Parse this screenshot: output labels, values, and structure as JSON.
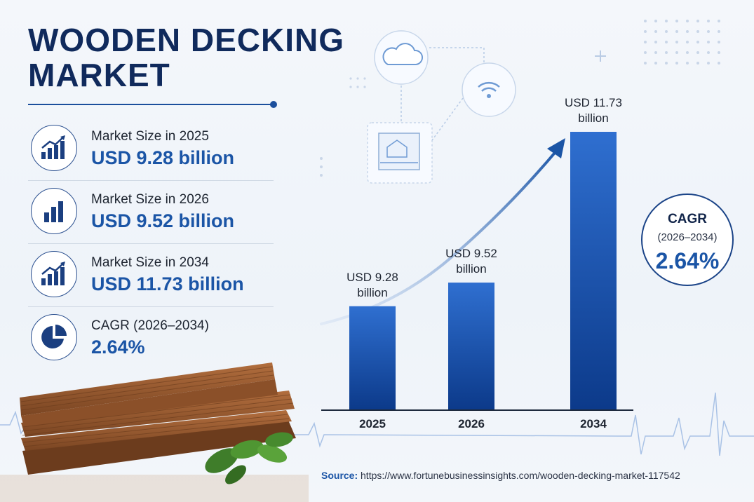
{
  "title_line1": "WOODEN DECKING",
  "title_line2": "MARKET",
  "stats": [
    {
      "label": "Market Size in 2025",
      "value": "USD 9.28 billion",
      "icon": "rising-bar-chart-icon"
    },
    {
      "label": "Market Size in 2026",
      "value": "USD 9.52 billion",
      "icon": "bar-chart-icon"
    },
    {
      "label": "Market Size in 2034",
      "value": "USD 11.73 billion",
      "icon": "rising-bar-chart-icon"
    },
    {
      "label": "CAGR (2026–2034)",
      "value": "2.64%",
      "icon": "pie-chart-icon"
    }
  ],
  "cagr_badge": {
    "label": "CAGR",
    "period": "(2026–2034)",
    "value": "2.64%"
  },
  "source": {
    "label": "Source:",
    "url": "https://www.fortunebusinessinsights.com/wooden-decking-market-117542"
  },
  "colors": {
    "navy": "#102a5c",
    "accent": "#1b55a6",
    "bar_top": "#2f6fd0",
    "bar_bottom": "#0c3a8a"
  },
  "chart_data": {
    "type": "bar",
    "categories": [
      "2025",
      "2026",
      "2034"
    ],
    "values": [
      9.28,
      9.52,
      11.73
    ],
    "data_labels": [
      [
        "USD 9.28",
        "billion"
      ],
      [
        "USD 9.52",
        "billion"
      ],
      [
        "USD 11.73",
        "billion"
      ]
    ],
    "title": "",
    "xlabel": "",
    "ylabel": "",
    "unit": "USD billion",
    "grid": false,
    "legend": "none"
  }
}
